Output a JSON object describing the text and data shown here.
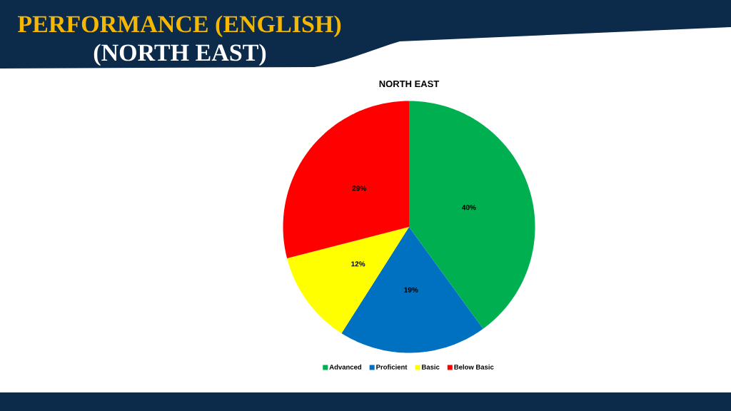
{
  "chart_data": {
    "type": "pie",
    "title": "PERFORMANCE (ENGLISH)",
    "subtitle": "(NORTH EAST)",
    "annotations": [
      "NORTH EAST"
    ],
    "categories": [
      "Advanced",
      "Proficient",
      "Basic",
      "Below Basic"
    ],
    "values": [
      40,
      19,
      12,
      29
    ],
    "colors": [
      "#00b050",
      "#0070c0",
      "#ffff00",
      "#ff0000"
    ],
    "value_labels": [
      "40%",
      "19%",
      "12%",
      "29%"
    ],
    "legend": "bottom"
  }
}
